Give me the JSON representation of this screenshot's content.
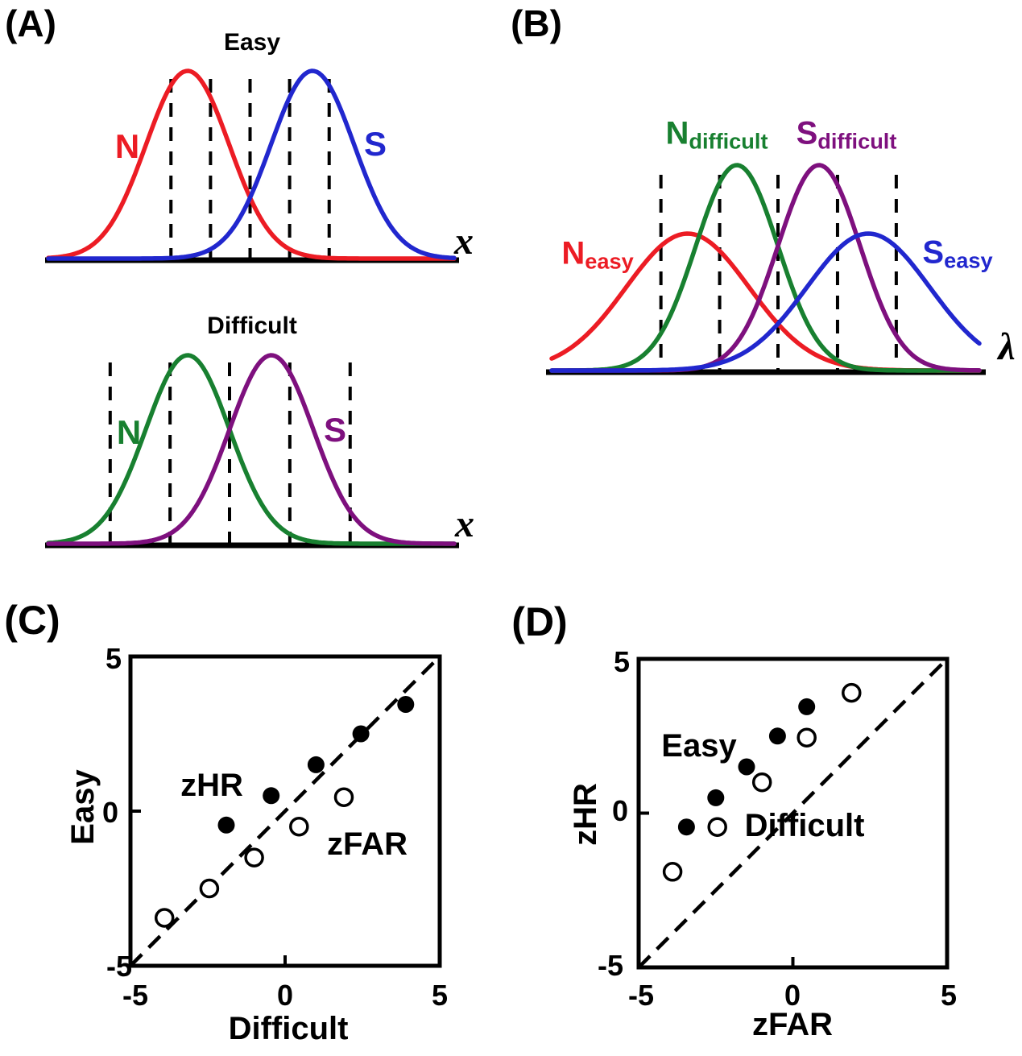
{
  "chart_data": [
    {
      "panel": "A",
      "label": "(A)",
      "type": "line",
      "description": "signal and noise probability density functions with decision criteria",
      "plots": [
        {
          "title": "Easy",
          "xlabel": "x",
          "criteria": [
            -1.9,
            -0.95,
            0,
            0.95,
            1.9
          ],
          "curves": [
            {
              "label": "N",
              "color": "#EC1C24",
              "mean": -1.5,
              "sigma": 1
            },
            {
              "label": "S",
              "color": "#2127CE",
              "mean": 1.5,
              "sigma": 1
            }
          ]
        },
        {
          "title": "Difficult",
          "xlabel": "x",
          "criteria": [
            -2.85,
            -1.42,
            0,
            1.44,
            2.88
          ],
          "curves": [
            {
              "label": "N",
              "color": "#188030",
              "mean": -1,
              "sigma": 1
            },
            {
              "label": "S",
              "color": "#7E107E",
              "mean": 1,
              "sigma": 1
            }
          ]
        }
      ]
    },
    {
      "panel": "B",
      "label": "(B)",
      "type": "line",
      "description": "all four distributions on common decision axis",
      "xlabel": "λ",
      "criteria": [
        -2.85,
        -1.42,
        0,
        1.45,
        2.88
      ],
      "curves": [
        {
          "label_main": "N",
          "label_sub": "easy",
          "color": "#EC1C24",
          "mean": -2.2,
          "sigma": 1.5
        },
        {
          "label_main": "N",
          "label_sub": "difficult",
          "color": "#188030",
          "mean": -1,
          "sigma": 1
        },
        {
          "label_main": "S",
          "label_sub": "difficult",
          "color": "#7E107E",
          "mean": 1,
          "sigma": 1
        },
        {
          "label_main": "S",
          "label_sub": "easy",
          "color": "#2127CE",
          "mean": 2.2,
          "sigma": 1.5
        }
      ]
    },
    {
      "panel": "C",
      "label": "(C)",
      "type": "scatter",
      "xlabel": "Difficult",
      "ylabel": "Easy",
      "xlim": [
        -5,
        5
      ],
      "ylim": [
        -5,
        5
      ],
      "xtick_labels": [
        "-5",
        "0",
        "5"
      ],
      "ytick_labels": [
        "5",
        "0",
        "-5"
      ],
      "identity_line": "dashed",
      "series": [
        {
          "name": "zHR",
          "marker": "filled",
          "x": [
            -1.9,
            -0.45,
            1.0,
            2.45,
            3.9
          ],
          "y": [
            -0.45,
            0.5,
            1.5,
            2.5,
            3.45
          ]
        },
        {
          "name": "zFAR",
          "marker": "open",
          "x": [
            -3.9,
            -2.45,
            -1.0,
            0.45,
            1.9
          ],
          "y": [
            -3.45,
            -2.5,
            -1.5,
            -0.5,
            0.45
          ]
        }
      ]
    },
    {
      "panel": "D",
      "label": "(D)",
      "type": "scatter",
      "xlabel": "zFAR",
      "ylabel": "zHR",
      "xlim": [
        -5,
        5
      ],
      "ylim": [
        -5,
        5
      ],
      "xtick_labels": [
        "-5",
        "0",
        "5"
      ],
      "ytick_labels": [
        "5",
        "0",
        "-5"
      ],
      "identity_line": "dashed",
      "series": [
        {
          "name": "Easy",
          "marker": "filled",
          "x": [
            -3.45,
            -2.5,
            -1.5,
            -0.5,
            0.45
          ],
          "y": [
            -0.45,
            0.5,
            1.5,
            2.5,
            3.45
          ]
        },
        {
          "name": "Difficult",
          "marker": "open",
          "x": [
            -3.9,
            -2.45,
            -1.0,
            0.45,
            1.9
          ],
          "y": [
            -1.9,
            -0.45,
            1.0,
            2.45,
            3.9
          ]
        }
      ]
    }
  ],
  "colors": {
    "axis": "#000000",
    "marker_filled": "#000000",
    "marker_open_fill": "#ffffff"
  }
}
